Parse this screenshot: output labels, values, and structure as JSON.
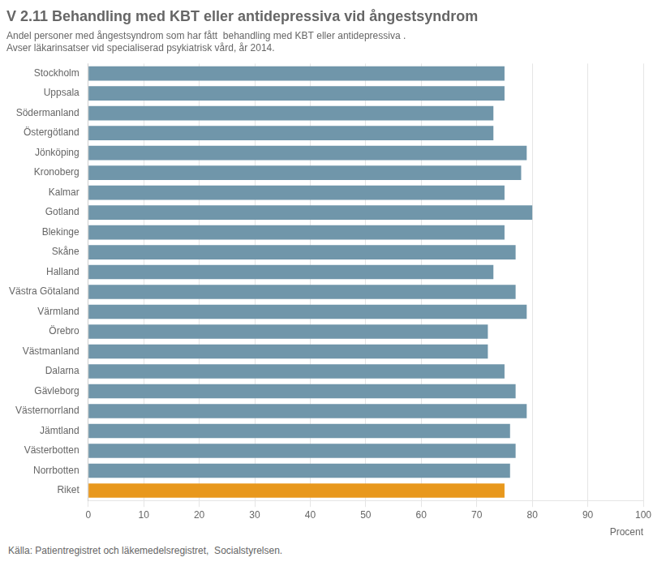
{
  "chart_data": {
    "type": "bar",
    "orientation": "horizontal",
    "title": "V 2.11 Behandling med KBT eller antidepressiva vid ångestsyndrom",
    "subtitle": [
      "Andel personer med ångestsyndrom som har fått  behandling med KBT eller antidepressiva .",
      "Avser läkarinsatser vid specialiserad psykiatrisk vård, år 2014."
    ],
    "annotations": [
      "Källa: Patientregistret och läkemedelsregistret,  Socialstyrelsen."
    ],
    "xlabel": "Procent",
    "categories": [
      "Stockholm",
      "Uppsala",
      "Södermanland",
      "Östergötland",
      "Jönköping",
      "Kronoberg",
      "Kalmar",
      "Gotland",
      "Blekinge",
      "Skåne",
      "Halland",
      "Västra Götaland",
      "Värmland",
      "Örebro",
      "Västmanland",
      "Dalarna",
      "Gävleborg",
      "Västernorrland",
      "Jämtland",
      "Västerbotten",
      "Norrbotten",
      "Riket"
    ],
    "values": [
      75,
      75,
      73,
      73,
      79,
      78,
      75,
      80,
      75,
      77,
      73,
      77,
      79,
      72,
      72,
      75,
      77,
      79,
      76,
      77,
      76,
      75
    ],
    "colors": [
      "#7096aa",
      "#7096aa",
      "#7096aa",
      "#7096aa",
      "#7096aa",
      "#7096aa",
      "#7096aa",
      "#7096aa",
      "#7096aa",
      "#7096aa",
      "#7096aa",
      "#7096aa",
      "#7096aa",
      "#7096aa",
      "#7096aa",
      "#7096aa",
      "#7096aa",
      "#7096aa",
      "#7096aa",
      "#7096aa",
      "#7096aa",
      "#e8981d"
    ],
    "xlim": [
      0,
      100
    ],
    "xticks": [
      0,
      10,
      20,
      30,
      40,
      50,
      60,
      70,
      80,
      90,
      100
    ],
    "grid": true
  }
}
